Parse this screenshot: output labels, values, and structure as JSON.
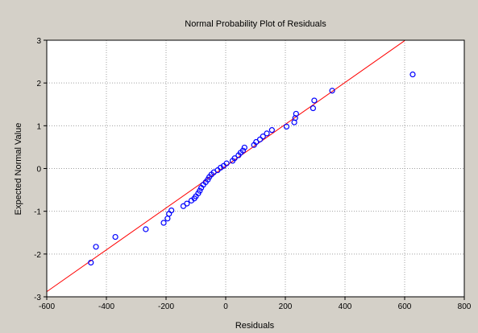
{
  "chart_data": {
    "type": "scatter",
    "title": "Normal Probability Plot of Residuals",
    "xlabel": "Residuals",
    "ylabel": "Expected Normal Value",
    "xlim": [
      -600,
      800
    ],
    "ylim": [
      -3,
      3
    ],
    "x_ticks": [
      -600,
      -400,
      -200,
      0,
      200,
      400,
      600,
      800
    ],
    "y_ticks": [
      -3,
      -2,
      -1,
      0,
      1,
      2,
      3
    ],
    "x_tick_labels": [
      "-600",
      "-400",
      "-200",
      "0",
      "200",
      "400",
      "600",
      "800"
    ],
    "y_tick_labels": [
      "-3",
      "-2",
      "-1",
      "0",
      "1",
      "2",
      "3"
    ],
    "grid": true,
    "colors": {
      "points": "#0000ff",
      "fit_line": "#ff0000",
      "background": "#d4d0c8",
      "plot_area": "#ffffff",
      "grid": "#a0a0a0"
    },
    "fit_line": {
      "x": [
        -600,
        600
      ],
      "y": [
        -2.88,
        2.99
      ]
    },
    "series": [
      {
        "values": [
          {
            "x": 627,
            "y": 2.2
          },
          {
            "x": 357,
            "y": 1.82
          },
          {
            "x": 297,
            "y": 1.59
          },
          {
            "x": 293,
            "y": 1.41
          },
          {
            "x": 236,
            "y": 1.28
          },
          {
            "x": 233,
            "y": 1.18
          },
          {
            "x": 230,
            "y": 1.08
          },
          {
            "x": 204,
            "y": 0.98
          },
          {
            "x": 155,
            "y": 0.9
          },
          {
            "x": 138,
            "y": 0.82
          },
          {
            "x": 125,
            "y": 0.75
          },
          {
            "x": 115,
            "y": 0.68
          },
          {
            "x": 102,
            "y": 0.62
          },
          {
            "x": 95,
            "y": 0.55
          },
          {
            "x": 63,
            "y": 0.49
          },
          {
            "x": 58,
            "y": 0.42
          },
          {
            "x": 50,
            "y": 0.37
          },
          {
            "x": 43,
            "y": 0.31
          },
          {
            "x": 30,
            "y": 0.24
          },
          {
            "x": 23,
            "y": 0.18
          },
          {
            "x": 3,
            "y": 0.12
          },
          {
            "x": -7,
            "y": 0.06
          },
          {
            "x": -17,
            "y": 0.02
          },
          {
            "x": -27,
            "y": -0.04
          },
          {
            "x": -40,
            "y": -0.09
          },
          {
            "x": -48,
            "y": -0.14
          },
          {
            "x": -55,
            "y": -0.2
          },
          {
            "x": -60,
            "y": -0.26
          },
          {
            "x": -67,
            "y": -0.32
          },
          {
            "x": -75,
            "y": -0.38
          },
          {
            "x": -82,
            "y": -0.45
          },
          {
            "x": -87,
            "y": -0.52
          },
          {
            "x": -92,
            "y": -0.58
          },
          {
            "x": -100,
            "y": -0.65
          },
          {
            "x": -105,
            "y": -0.7
          },
          {
            "x": -115,
            "y": -0.75
          },
          {
            "x": -130,
            "y": -0.82
          },
          {
            "x": -142,
            "y": -0.88
          },
          {
            "x": -182,
            "y": -0.98
          },
          {
            "x": -190,
            "y": -1.06
          },
          {
            "x": -195,
            "y": -1.17
          },
          {
            "x": -208,
            "y": -1.27
          },
          {
            "x": -268,
            "y": -1.42
          },
          {
            "x": -370,
            "y": -1.6
          },
          {
            "x": -435,
            "y": -1.83
          },
          {
            "x": -452,
            "y": -2.2
          }
        ]
      }
    ]
  }
}
